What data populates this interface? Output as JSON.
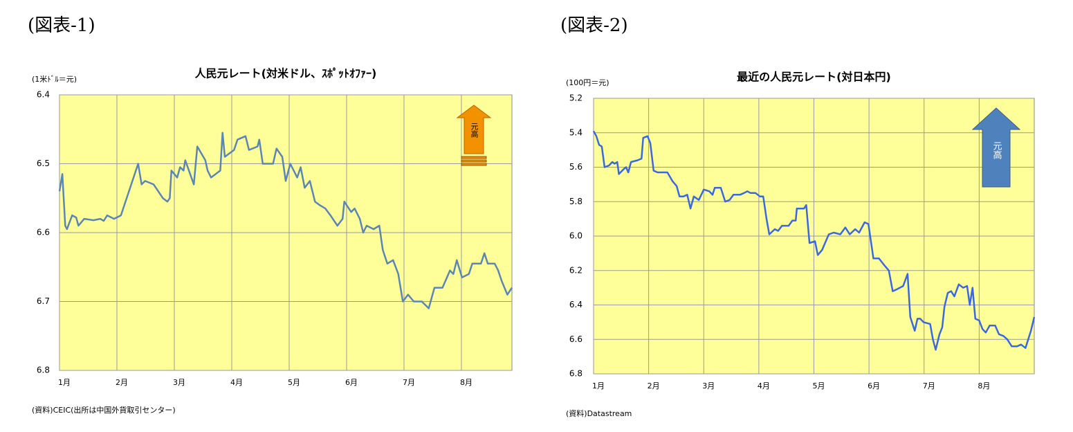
{
  "chart_data": [
    {
      "type": "line",
      "figure_label": "(図表-1)",
      "title": "人民元レート(対米ドル、ｽﾎﾟｯﾄｵﾌｧｰ)",
      "y_unit": "(1米ﾄﾞﾙ＝元)",
      "annotation": "元高",
      "source": "(資料)CEIC(出所は中国外貨取引センター)",
      "color": "#5b86b4",
      "grid": true,
      "y_inverted": true,
      "xlim": [
        0,
        7.88
      ],
      "xticks": [
        {
          "value": 0,
          "label": "1月"
        },
        {
          "value": 1,
          "label": "2月"
        },
        {
          "value": 2,
          "label": "3月"
        },
        {
          "value": 3,
          "label": "4月"
        },
        {
          "value": 4,
          "label": "5月"
        },
        {
          "value": 5,
          "label": "6月"
        },
        {
          "value": 6,
          "label": "7月"
        },
        {
          "value": 7,
          "label": "8月"
        }
      ],
      "ylim": [
        6.4,
        6.8
      ],
      "yticks": [
        6.4,
        6.5,
        6.6,
        6.7,
        6.8
      ],
      "x": [
        0,
        0.05,
        0.1,
        0.13,
        0.22,
        0.29,
        0.33,
        0.43,
        0.59,
        0.71,
        0.77,
        0.83,
        0.95,
        1.07,
        1.37,
        1.43,
        1.49,
        1.64,
        1.8,
        1.88,
        1.92,
        1.95,
        2.05,
        2.1,
        2.16,
        2.19,
        2.34,
        2.4,
        2.54,
        2.58,
        2.64,
        2.8,
        2.84,
        2.88,
        3.04,
        3.1,
        3.24,
        3.3,
        3.45,
        3.48,
        3.54,
        3.72,
        3.78,
        3.88,
        3.94,
        4.02,
        4.14,
        4.2,
        4.27,
        4.36,
        4.45,
        4.53,
        4.63,
        4.72,
        4.84,
        4.93,
        4.96,
        5.08,
        5.14,
        5.23,
        5.29,
        5.35,
        5.47,
        5.57,
        5.63,
        5.71,
        5.81,
        5.9,
        5.98,
        6.07,
        6.17,
        6.31,
        6.43,
        6.53,
        6.67,
        6.8,
        6.86,
        6.92,
        7.01,
        7.13,
        7.19,
        7.34,
        7.4,
        7.46,
        7.58,
        7.64,
        7.7,
        7.8,
        7.88
      ],
      "values": [
        6.54,
        6.515,
        6.59,
        6.595,
        6.575,
        6.578,
        6.59,
        6.58,
        6.582,
        6.58,
        6.583,
        6.575,
        6.58,
        6.575,
        6.5,
        6.53,
        6.525,
        6.53,
        6.55,
        6.555,
        6.55,
        6.51,
        6.52,
        6.505,
        6.51,
        6.495,
        6.53,
        6.475,
        6.495,
        6.51,
        6.52,
        6.51,
        6.455,
        6.49,
        6.48,
        6.465,
        6.46,
        6.48,
        6.475,
        6.465,
        6.5,
        6.5,
        6.478,
        6.49,
        6.525,
        6.5,
        6.52,
        6.505,
        6.535,
        6.525,
        6.555,
        6.56,
        6.565,
        6.575,
        6.59,
        6.58,
        6.555,
        6.57,
        6.565,
        6.58,
        6.6,
        6.59,
        6.595,
        6.59,
        6.625,
        6.645,
        6.64,
        6.66,
        6.7,
        6.69,
        6.7,
        6.7,
        6.71,
        6.68,
        6.68,
        6.655,
        6.66,
        6.64,
        6.665,
        6.66,
        6.645,
        6.645,
        6.63,
        6.645,
        6.645,
        6.655,
        6.67,
        6.69,
        6.68
      ]
    },
    {
      "type": "line",
      "figure_label": "(図表-2)",
      "title": "最近の人民元レート(対日本円)",
      "y_unit": "(100円＝元)",
      "annotation": "元高",
      "source": "(資料)Datastream",
      "color": "#3a68e0",
      "grid": true,
      "y_inverted": true,
      "xlim": [
        0,
        8.0
      ],
      "xticks": [
        {
          "value": 0,
          "label": "1月"
        },
        {
          "value": 1,
          "label": "2月"
        },
        {
          "value": 2,
          "label": "3月"
        },
        {
          "value": 3,
          "label": "4月"
        },
        {
          "value": 4,
          "label": "5月"
        },
        {
          "value": 5,
          "label": "6月"
        },
        {
          "value": 6,
          "label": "7月"
        },
        {
          "value": 7,
          "label": "8月"
        }
      ],
      "ylim": [
        5.2,
        6.8
      ],
      "yticks": [
        5.2,
        5.4,
        5.6,
        5.8,
        {
          "value": 6,
          "label": "6.0"
        },
        6.2,
        6.4,
        6.6,
        6.8
      ],
      "x": [
        0,
        0.05,
        0.1,
        0.15,
        0.2,
        0.28,
        0.34,
        0.38,
        0.43,
        0.46,
        0.55,
        0.59,
        0.63,
        0.68,
        0.8,
        0.87,
        0.9,
        0.98,
        1.03,
        1.09,
        1.16,
        1.34,
        1.43,
        1.51,
        1.56,
        1.63,
        1.7,
        1.76,
        1.82,
        1.91,
        2.0,
        2.1,
        2.16,
        2.2,
        2.31,
        2.39,
        2.47,
        2.54,
        2.66,
        2.73,
        2.79,
        2.85,
        2.94,
        3.02,
        3.08,
        3.14,
        3.19,
        3.29,
        3.35,
        3.42,
        3.54,
        3.61,
        3.67,
        3.69,
        3.82,
        3.86,
        3.92,
        4.02,
        4.07,
        4.15,
        4.27,
        4.36,
        4.48,
        4.57,
        4.65,
        4.75,
        4.82,
        4.92,
        4.99,
        5.08,
        5.18,
        5.28,
        5.36,
        5.43,
        5.5,
        5.62,
        5.7,
        5.75,
        5.83,
        5.88,
        5.93,
        5.99,
        6.11,
        6.16,
        6.21,
        6.28,
        6.33,
        6.37,
        6.43,
        6.49,
        6.55,
        6.63,
        6.71,
        6.78,
        6.83,
        6.88,
        6.93,
        7.0,
        7.06,
        7.12,
        7.19,
        7.29,
        7.36,
        7.44,
        7.51,
        7.59,
        7.69,
        7.76,
        7.84,
        7.94,
        8.0
      ],
      "values": [
        5.39,
        5.42,
        5.47,
        5.48,
        5.6,
        5.59,
        5.57,
        5.58,
        5.57,
        5.64,
        5.61,
        5.6,
        5.63,
        5.57,
        5.56,
        5.55,
        5.43,
        5.42,
        5.46,
        5.62,
        5.63,
        5.63,
        5.68,
        5.71,
        5.77,
        5.77,
        5.76,
        5.84,
        5.77,
        5.79,
        5.73,
        5.74,
        5.76,
        5.72,
        5.72,
        5.8,
        5.79,
        5.76,
        5.76,
        5.75,
        5.74,
        5.75,
        5.75,
        5.77,
        5.77,
        5.9,
        5.99,
        5.96,
        5.97,
        5.94,
        5.94,
        5.91,
        5.91,
        5.84,
        5.84,
        5.82,
        6.04,
        6.03,
        6.11,
        6.08,
        5.99,
        5.98,
        5.99,
        5.95,
        5.99,
        5.96,
        5.98,
        5.92,
        5.93,
        6.13,
        6.13,
        6.17,
        6.2,
        6.32,
        6.31,
        6.29,
        6.22,
        6.47,
        6.55,
        6.48,
        6.48,
        6.5,
        6.51,
        6.6,
        6.66,
        6.57,
        6.53,
        6.41,
        6.33,
        6.32,
        6.35,
        6.28,
        6.3,
        6.29,
        6.4,
        6.3,
        6.48,
        6.49,
        6.54,
        6.56,
        6.52,
        6.52,
        6.57,
        6.58,
        6.6,
        6.64,
        6.64,
        6.63,
        6.65,
        6.55,
        6.47
      ]
    }
  ]
}
